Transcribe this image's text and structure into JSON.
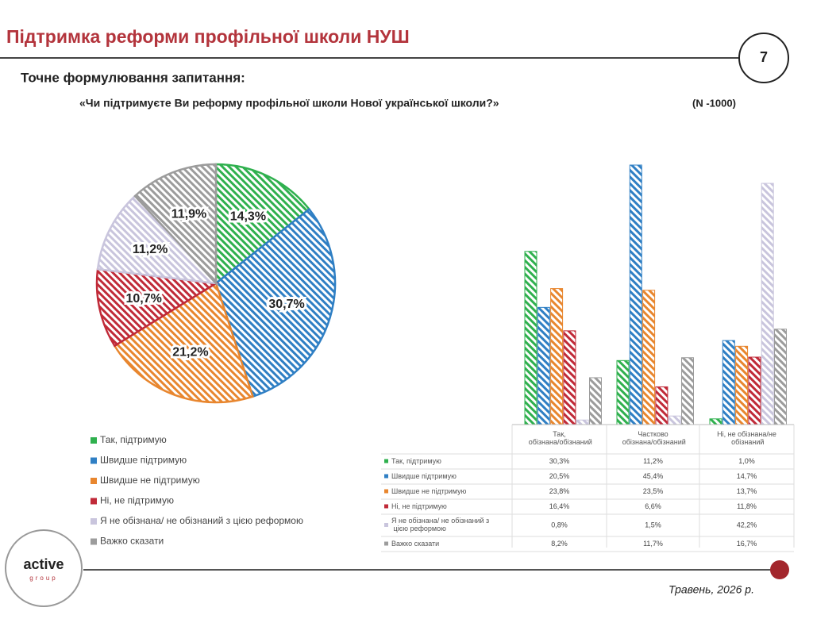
{
  "header": {
    "title": "Підтримка реформи профільної школи НУШ",
    "page_number": "7",
    "subtitle": "Точне формулювання запитання:",
    "question": "«Чи підтримуєте Ви реформу профільної школи Нової української школи?»",
    "sample_note": "(N -1000)"
  },
  "chart_data": [
    {
      "type": "pie",
      "categories": [
        "Так, підтримую",
        "Швидше підтримую",
        "Швидше не підтримую",
        "Ні, не підтримую",
        "Я не обізнана/ не обізнаний з цією реформою",
        "Важко сказати"
      ],
      "values": [
        14.3,
        30.7,
        21.2,
        10.7,
        11.2,
        11.9
      ],
      "value_labels": [
        "14,3%",
        "30,7%",
        "21,2%",
        "10,7%",
        "11,2%",
        "11,9%"
      ],
      "colors": [
        "#2fb04e",
        "#2f7fc4",
        "#e8862e",
        "#c02a38",
        "#c9c5dd",
        "#9c9c9c"
      ],
      "hatch": true,
      "legend": "bottom-left"
    },
    {
      "type": "bar",
      "categories": [
        "Так, обізнана/обізнаний",
        "Частково обізнана/обізнаний",
        "Ні, не обізнана/не обізнаний"
      ],
      "series": [
        {
          "name": "Так, підтримую",
          "color": "#2fb04e",
          "values": [
            30.3,
            11.2,
            1.0
          ],
          "value_labels": [
            "30,3%",
            "11,2%",
            "1,0%"
          ]
        },
        {
          "name": "Швидше підтримую",
          "color": "#2f7fc4",
          "values": [
            20.5,
            45.4,
            14.7
          ],
          "value_labels": [
            "20,5%",
            "45,4%",
            "14,7%"
          ]
        },
        {
          "name": "Швидше не підтримую",
          "color": "#e8862e",
          "values": [
            23.8,
            23.5,
            13.7
          ],
          "value_labels": [
            "23,8%",
            "23,5%",
            "13,7%"
          ]
        },
        {
          "name": "Ні, не підтримую",
          "color": "#c02a38",
          "values": [
            16.4,
            6.6,
            11.8
          ],
          "value_labels": [
            "16,4%",
            "6,6%",
            "11,8%"
          ]
        },
        {
          "name": "Я не обізнана/ не обізнаний з цією реформою",
          "color": "#c9c5dd",
          "values": [
            0.8,
            1.5,
            42.2
          ],
          "value_labels": [
            "0,8%",
            "1,5%",
            "42,2%"
          ]
        },
        {
          "name": "Важко сказати",
          "color": "#9c9c9c",
          "values": [
            8.2,
            11.7,
            16.7
          ],
          "value_labels": [
            "8,2%",
            "11,7%",
            "16,7%"
          ]
        }
      ],
      "hatch": true,
      "table": true
    }
  ],
  "footer": {
    "logo_name": "active",
    "logo_sub": "group",
    "date": "Травень, 2026 р."
  }
}
